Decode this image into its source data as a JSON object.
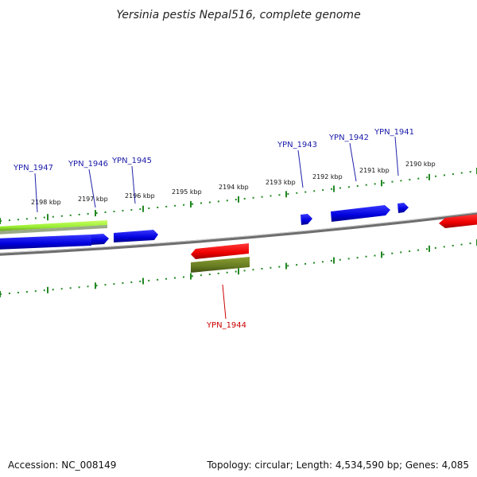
{
  "title": "Yersinia pestis Nepal516, complete genome",
  "footer": {
    "accession": "Accession: NC_008149",
    "summary": "Topology: circular; Length: 4,534,590 bp; Genes: 4,085"
  },
  "colors": {
    "forward_gene": "#0000ee",
    "reverse_gene": "#ee0000",
    "forward_cds": "#99ee33",
    "reverse_cds": "#667a22",
    "tick": "#228822",
    "backbone": "#8a8a8a",
    "forward_label": "#1a1aaa",
    "reverse_label": "#cc0000"
  },
  "kbp_ticks": [
    {
      "label": "2198 kbp",
      "kbp": 2198
    },
    {
      "label": "2197 kbp",
      "kbp": 2197
    },
    {
      "label": "2196 kbp",
      "kbp": 2196
    },
    {
      "label": "2195 kbp",
      "kbp": 2195
    },
    {
      "label": "2194 kbp",
      "kbp": 2194
    },
    {
      "label": "2193 kbp",
      "kbp": 2193
    },
    {
      "label": "2192 kbp",
      "kbp": 2192
    },
    {
      "label": "2191 kbp",
      "kbp": 2191
    },
    {
      "label": "2190 kbp",
      "kbp": 2190
    }
  ],
  "genes": [
    {
      "name": "YPN_1947",
      "strand": "forward"
    },
    {
      "name": "YPN_1946",
      "strand": "forward"
    },
    {
      "name": "YPN_1945",
      "strand": "forward"
    },
    {
      "name": "YPN_1943",
      "strand": "forward"
    },
    {
      "name": "YPN_1942",
      "strand": "forward"
    },
    {
      "name": "YPN_1941",
      "strand": "forward"
    },
    {
      "name": "YPN_1944",
      "strand": "reverse"
    }
  ]
}
